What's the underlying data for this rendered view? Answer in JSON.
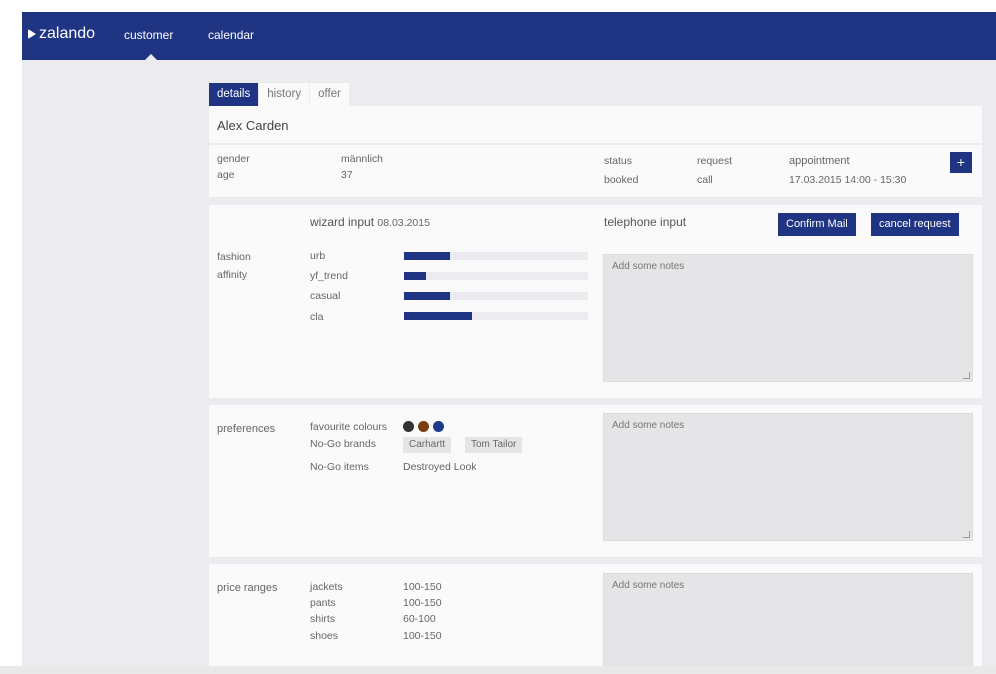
{
  "header": {
    "logo": "zalando",
    "nav": [
      "customer",
      "calendar"
    ]
  },
  "tabs": [
    "details",
    "history",
    "offer"
  ],
  "customer": {
    "name": "Alex Carden",
    "gender_label": "gender",
    "gender_value": "männlich",
    "age_label": "age",
    "age_value": "37",
    "status_label": "status",
    "status_value": "booked",
    "request_label": "request",
    "request_value": "call",
    "appointment_label": "appointment",
    "appointment_value": "17.03.2015 14:00 - 15:30",
    "add_label": "+"
  },
  "wizard": {
    "title": "wizard input",
    "date": "08.03.2015"
  },
  "telephone": {
    "title": "telephone input",
    "confirm_label": "Confirm Mail",
    "cancel_label": "cancel request"
  },
  "notes_placeholder": "Add some notes",
  "fashion": {
    "label_line1": "fashion",
    "label_line2": "affinity",
    "items": [
      {
        "label": "urb",
        "value": 0.25
      },
      {
        "label": "yf_trend",
        "value": 0.12
      },
      {
        "label": "casual",
        "value": 0.25
      },
      {
        "label": "cla",
        "value": 0.37
      }
    ]
  },
  "preferences": {
    "label": "preferences",
    "colours_label": "favourite colours",
    "colours": [
      "#333333",
      "#7a3c10",
      "#1f3a8a"
    ],
    "nogo_brands_label": "No-Go brands",
    "nogo_brands": [
      "Carhartt",
      "Tom Tailor"
    ],
    "nogo_items_label": "No-Go items",
    "nogo_items_value": "Destroyed Look"
  },
  "prices": {
    "label": "price ranges",
    "rows": [
      {
        "item": "jackets",
        "range": "100-150"
      },
      {
        "item": "pants",
        "range": "100-150"
      },
      {
        "item": "shirts",
        "range": "60-100"
      },
      {
        "item": "shoes",
        "range": "100-150"
      }
    ]
  },
  "colors": {
    "brand": "#1f3482"
  }
}
